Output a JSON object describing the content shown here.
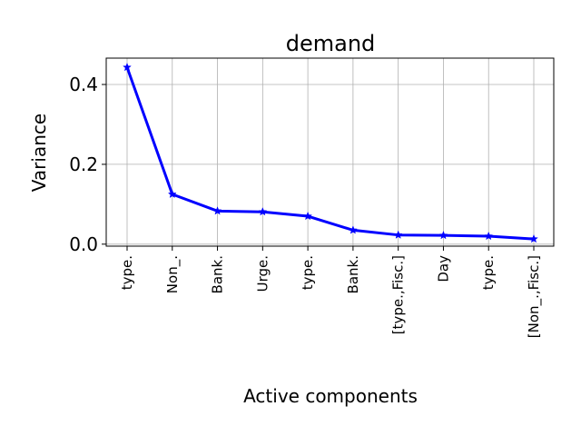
{
  "chart_data": {
    "type": "line",
    "title": "demand",
    "xlabel": "Active components",
    "ylabel": "Variance",
    "categories": [
      "type.",
      "Non_.",
      "Bank.",
      "Urge.",
      "type.",
      "Bank.",
      "[type.,Fisc.]",
      "Day",
      "type.",
      "[Non_.,Fisc.]"
    ],
    "series": [
      {
        "values": [
          0.443,
          0.125,
          0.083,
          0.081,
          0.07,
          0.035,
          0.023,
          0.022,
          0.02,
          0.013
        ],
        "color": "#0000ff",
        "marker": "star"
      }
    ],
    "yticks": [
      "0.0",
      "0.2",
      "0.4"
    ],
    "ylim": [
      -0.005,
      0.466
    ],
    "grid": true
  }
}
